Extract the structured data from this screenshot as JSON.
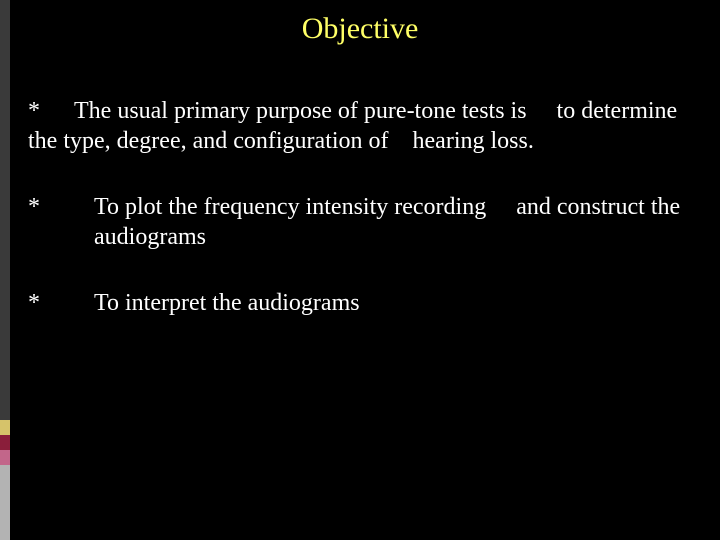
{
  "accent_colors": [
    "#3a3a3a",
    "#3a3a3a",
    "#3a3a3a",
    "#3a3a3a",
    "#d6c36a",
    "#8a1e3a",
    "#c2668a",
    "#b3b3b3"
  ],
  "accent_heights": [
    40,
    200,
    40,
    140,
    15,
    15,
    15,
    75
  ],
  "title": "Objective",
  "bullets": [
    "The usual primary purpose of pure-tone tests is     to determine the type, degree, and configuration of    hearing loss.",
    "To plot the frequency intensity  recording     and construct the audiograms",
    "To interpret the audiograms"
  ],
  "star": "*",
  "colors": {
    "background": "#000000",
    "title": "#ffff66",
    "body_text": "#ffffff"
  },
  "fontsize": {
    "title": 30,
    "body": 24
  }
}
